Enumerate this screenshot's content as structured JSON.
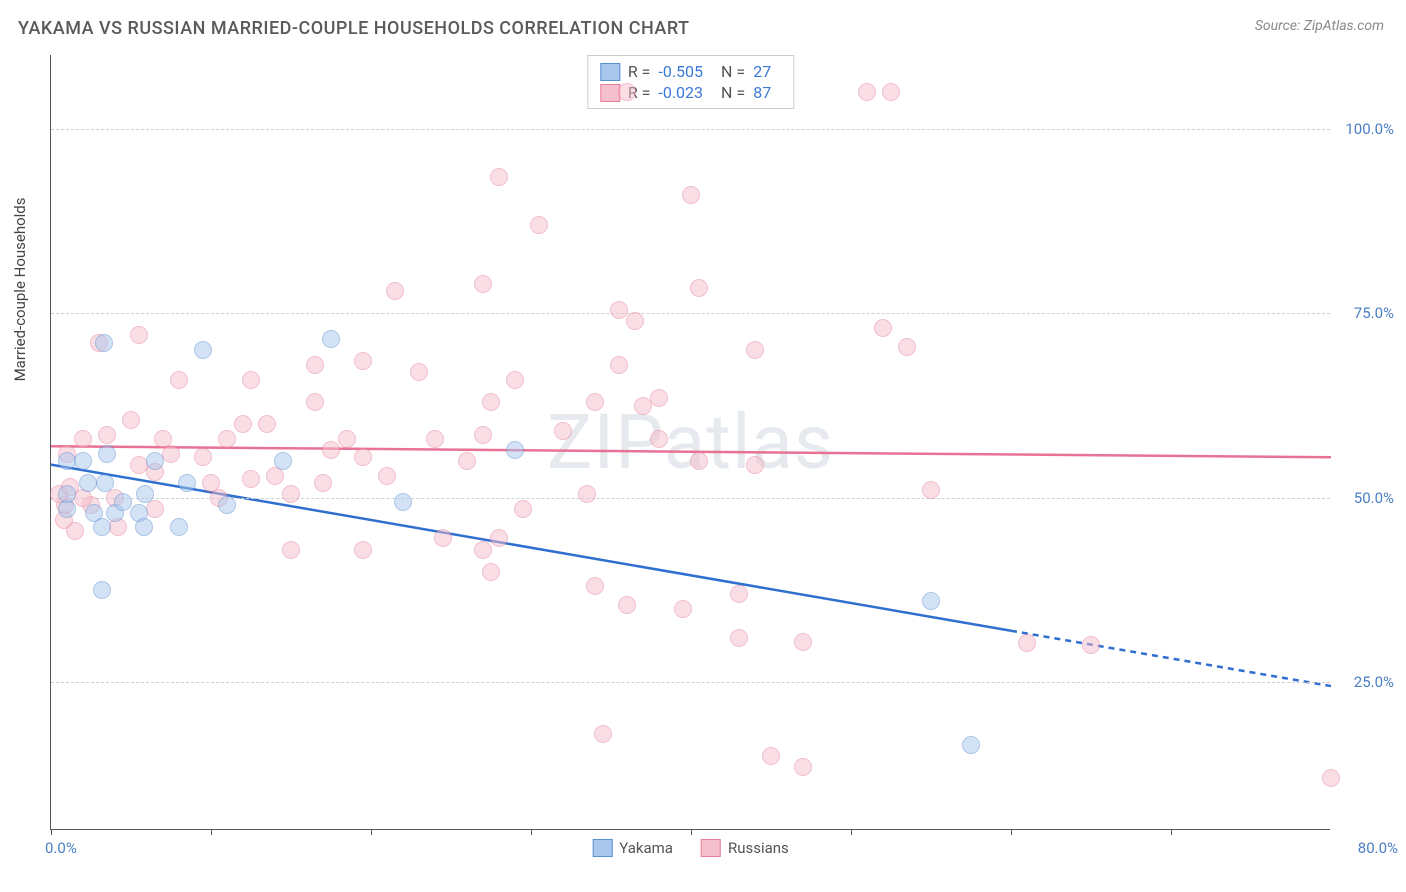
{
  "title": "YAKAMA VS RUSSIAN MARRIED-COUPLE HOUSEHOLDS CORRELATION CHART",
  "source": "Source: ZipAtlas.com",
  "watermark": "ZIPatlas",
  "y_axis_title": "Married-couple Households",
  "chart": {
    "type": "scatter",
    "xlim": [
      0,
      80
    ],
    "ylim": [
      5,
      110
    ],
    "x_ticks": [
      0,
      10,
      20,
      30,
      40,
      50,
      60,
      70
    ],
    "x_label_min": "0.0%",
    "x_label_max": "80.0%",
    "y_gridlines": [
      25,
      50,
      75,
      100
    ],
    "y_tick_labels": [
      "25.0%",
      "50.0%",
      "75.0%",
      "100.0%"
    ],
    "background_color": "#ffffff",
    "grid_color": "#d0d0d0",
    "axis_color": "#555555",
    "tick_label_color": "#4a7ec2",
    "marker_radius": 9,
    "marker_opacity": 0.5,
    "series": [
      {
        "name": "Yakama",
        "fill_color": "#a9c7ec",
        "stroke_color": "#5a8fd4",
        "line_color": "#2f6fd0",
        "R": "-0.505",
        "N": "27",
        "trend": {
          "x1": 0,
          "y1": 54.5,
          "x2": 60,
          "y2": 32,
          "dash_x2": 80,
          "dash_y2": 24.5
        },
        "points": [
          [
            3.3,
            71
          ],
          [
            9.5,
            70
          ],
          [
            17.5,
            71.5
          ],
          [
            1.0,
            48.5
          ],
          [
            1.0,
            50.5
          ],
          [
            1.0,
            55
          ],
          [
            2.0,
            55
          ],
          [
            2.3,
            52
          ],
          [
            2.7,
            48
          ],
          [
            3.2,
            46
          ],
          [
            3.4,
            52
          ],
          [
            3.5,
            56
          ],
          [
            4.0,
            48
          ],
          [
            4.5,
            49.5
          ],
          [
            5.5,
            48
          ],
          [
            5.8,
            46
          ],
          [
            5.9,
            50.5
          ],
          [
            6.5,
            55
          ],
          [
            8.0,
            46
          ],
          [
            8.5,
            52
          ],
          [
            11.0,
            49
          ],
          [
            14.5,
            55
          ],
          [
            22.0,
            49.5
          ],
          [
            3.2,
            37.5
          ],
          [
            29.0,
            56.5
          ],
          [
            55.0,
            36
          ],
          [
            57.5,
            16.5
          ]
        ]
      },
      {
        "name": "Russians",
        "fill_color": "#f6bfcd",
        "stroke_color": "#e87f9a",
        "line_color": "#e87294",
        "R": "-0.023",
        "N": "87",
        "trend": {
          "x1": 0,
          "y1": 57,
          "x2": 80,
          "y2": 55.5
        },
        "points": [
          [
            36,
            105
          ],
          [
            51,
            105
          ],
          [
            52.5,
            105
          ],
          [
            28,
            93.5
          ],
          [
            40,
            91
          ],
          [
            30.5,
            87
          ],
          [
            21.5,
            78
          ],
          [
            27,
            79
          ],
          [
            40.5,
            78.5
          ],
          [
            35.5,
            75.5
          ],
          [
            36.5,
            74
          ],
          [
            52,
            73
          ],
          [
            3,
            71
          ],
          [
            5.5,
            72
          ],
          [
            44.0,
            70
          ],
          [
            53.5,
            70.5
          ],
          [
            8,
            66
          ],
          [
            12.5,
            66
          ],
          [
            16.5,
            68
          ],
          [
            16.5,
            63
          ],
          [
            19.5,
            68.5
          ],
          [
            23,
            67
          ],
          [
            27.5,
            63
          ],
          [
            29,
            66
          ],
          [
            34,
            63
          ],
          [
            35.5,
            68
          ],
          [
            37,
            62.5
          ],
          [
            38,
            63.5
          ],
          [
            1,
            56
          ],
          [
            2,
            58
          ],
          [
            3.5,
            58.5
          ],
          [
            5.5,
            54.5
          ],
          [
            6.5,
            53.5
          ],
          [
            7,
            58
          ],
          [
            7.5,
            56
          ],
          [
            9.5,
            55.5
          ],
          [
            10,
            52
          ],
          [
            11,
            58
          ],
          [
            12,
            60
          ],
          [
            12.5,
            52.5
          ],
          [
            13.5,
            60
          ],
          [
            14,
            53
          ],
          [
            15,
            50.5
          ],
          [
            17,
            52
          ],
          [
            17.5,
            56.5
          ],
          [
            18.5,
            58
          ],
          [
            19.5,
            55.5
          ],
          [
            21,
            53
          ],
          [
            26,
            55
          ],
          [
            27,
            58.5
          ],
          [
            32,
            59
          ],
          [
            38,
            58
          ],
          [
            40.5,
            55
          ],
          [
            44,
            54.5
          ],
          [
            55,
            51
          ],
          [
            0.8,
            47
          ],
          [
            0.9,
            49
          ],
          [
            1.5,
            45.5
          ],
          [
            2.5,
            49
          ],
          [
            4,
            50
          ],
          [
            4.2,
            46
          ],
          [
            6.5,
            48.5
          ],
          [
            10.5,
            50
          ],
          [
            15,
            43
          ],
          [
            19.5,
            43
          ],
          [
            24.5,
            44.5
          ],
          [
            27,
            43
          ],
          [
            27.5,
            40
          ],
          [
            28,
            44.5
          ],
          [
            29.5,
            48.5
          ],
          [
            34,
            38
          ],
          [
            36,
            35.5
          ],
          [
            39.5,
            35
          ],
          [
            43,
            31
          ],
          [
            43,
            37
          ],
          [
            47,
            30.5
          ],
          [
            61,
            30.3
          ],
          [
            65,
            30
          ],
          [
            34.5,
            18
          ],
          [
            45,
            15
          ],
          [
            47,
            13.5
          ],
          [
            80,
            12
          ],
          [
            0.5,
            50.5
          ],
          [
            1.2,
            51.5
          ],
          [
            2.0,
            50
          ],
          [
            5.0,
            60.5
          ],
          [
            24.0,
            58
          ],
          [
            33.5,
            50.5
          ]
        ]
      }
    ]
  },
  "legend": {
    "items": [
      {
        "label": "Yakama",
        "fill": "#a9c7ec",
        "stroke": "#5a8fd4"
      },
      {
        "label": "Russians",
        "fill": "#f6bfcd",
        "stroke": "#e87f9a"
      }
    ]
  }
}
